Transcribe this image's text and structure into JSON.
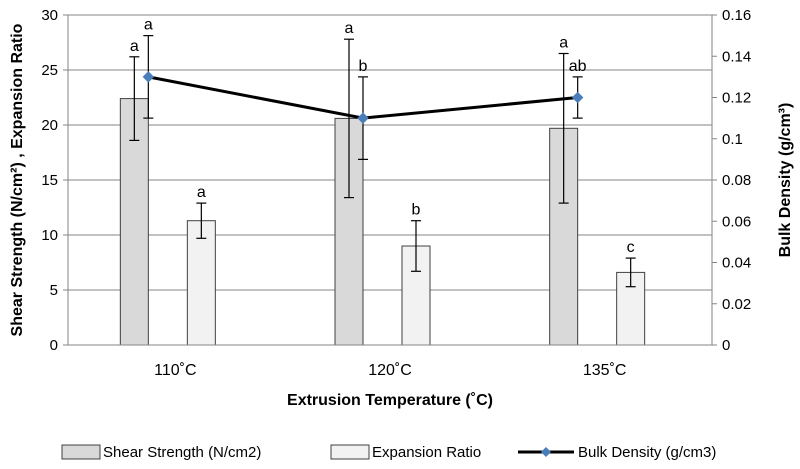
{
  "chart_data": {
    "type": "bar",
    "categories": [
      "110˚C",
      "120˚C",
      "135˚C"
    ],
    "xlabel": "Extrusion Temperature (˚C)",
    "ylabel": "Shear Strength (N/cm²) , Expansion Ratio",
    "y2label": "Bulk Density (g/cm³)",
    "ylim": [
      0,
      30
    ],
    "y2lim": [
      0,
      0.16
    ],
    "yticks": [
      0,
      5,
      10,
      15,
      20,
      25,
      30
    ],
    "y2ticks": [
      0,
      0.02,
      0.04,
      0.06,
      0.08,
      0.1,
      0.12,
      0.14,
      0.16
    ],
    "grid": true,
    "legend_position": "bottom",
    "series": [
      {
        "name": "Shear Strength (N/cm2)",
        "kind": "bar",
        "axis": "left",
        "values": [
          22.4,
          20.6,
          19.7
        ],
        "errors": [
          3.8,
          7.2,
          6.8
        ],
        "labels": [
          "a",
          "a",
          "a"
        ],
        "color": "#d9d9d9"
      },
      {
        "name": "Expansion Ratio",
        "kind": "bar",
        "axis": "left",
        "values": [
          11.3,
          9.0,
          6.6
        ],
        "errors": [
          1.6,
          2.3,
          1.3
        ],
        "labels": [
          "a",
          "b",
          "c"
        ],
        "color": "#f2f2f2"
      },
      {
        "name": "Bulk Density (g/cm3)",
        "kind": "line",
        "axis": "right",
        "values": [
          0.13,
          0.11,
          0.12
        ],
        "errors": [
          0.02,
          0.02,
          0.01
        ],
        "labels": [
          "a",
          "b",
          "ab"
        ],
        "color": "#000000",
        "marker_color": "#4a7ebb"
      }
    ]
  }
}
